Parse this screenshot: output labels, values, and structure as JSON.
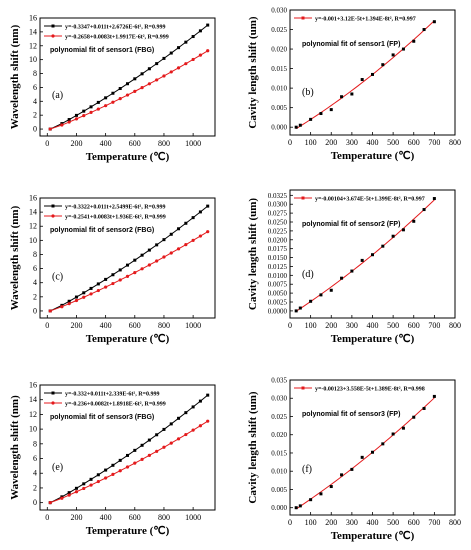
{
  "figure": {
    "background": "#ffffff",
    "colors": {
      "black_series": "#000000",
      "red_series": "#e41a1c",
      "axis": "#000000"
    }
  },
  "chart_data": [
    {
      "id": "a",
      "type": "line",
      "panel_label": "(a)",
      "title": "polynomial fit of sensor1 (FBG)",
      "xlabel": "Temperature (℃)",
      "ylabel": "Wavelength shift (nm)",
      "xlim": [
        -50,
        1150
      ],
      "ylim": [
        -1,
        16
      ],
      "xticks": [
        0,
        200,
        400,
        600,
        800,
        1000
      ],
      "yticks": [
        0,
        2,
        4,
        6,
        8,
        10,
        12,
        14,
        16
      ],
      "legend_location": "top-left",
      "series": [
        {
          "name": "y=-0.3347+0.011t+2.6726E-6t², R=0.999",
          "color": "#000000",
          "marker": "square",
          "x": [
            20,
            100,
            150,
            200,
            250,
            300,
            350,
            400,
            450,
            500,
            550,
            600,
            650,
            700,
            750,
            800,
            850,
            900,
            950,
            1000,
            1050,
            1100
          ],
          "y": [
            0.0,
            0.79,
            1.37,
            1.97,
            2.58,
            3.2,
            3.84,
            4.5,
            5.16,
            5.84,
            6.53,
            7.24,
            7.96,
            8.69,
            9.43,
            10.18,
            10.95,
            11.73,
            12.52,
            13.33,
            14.15,
            14.98
          ]
        },
        {
          "name": "y=-0.2658+0.0083t+1.9917E-6t², R=0.999",
          "color": "#e41a1c",
          "marker": "circle",
          "x": [
            20,
            100,
            150,
            200,
            250,
            300,
            350,
            400,
            450,
            500,
            550,
            600,
            650,
            700,
            750,
            800,
            850,
            900,
            950,
            1000,
            1050,
            1100
          ],
          "y": [
            0.0,
            0.58,
            1.01,
            1.47,
            1.93,
            2.4,
            2.88,
            3.37,
            3.87,
            4.38,
            4.9,
            5.43,
            5.97,
            6.52,
            7.08,
            7.65,
            8.23,
            8.82,
            9.42,
            10.03,
            10.65,
            11.28
          ]
        }
      ]
    },
    {
      "id": "b",
      "type": "scatter",
      "panel_label": "(b)",
      "title": "polynomial fit of sensor1 (FP)",
      "xlabel": "Temperature (℃)",
      "ylabel": "Cavity length shift (um)",
      "xlim": [
        0,
        800
      ],
      "ylim": [
        -0.002,
        0.03
      ],
      "xticks": [
        0,
        100,
        200,
        300,
        400,
        500,
        600,
        700,
        800
      ],
      "yticks": [
        0.0,
        0.005,
        0.01,
        0.015,
        0.02,
        0.025,
        0.03
      ],
      "ytick_labels": [
        "0.000",
        "0.005",
        "0.010",
        "0.015",
        "0.020",
        "0.025",
        "0.030"
      ],
      "legend_location": "top-left",
      "series": [
        {
          "name": "y=-0.001+3.12E-5t+1.394E-8t², R=0.997",
          "color": "#000000",
          "marker": "square",
          "fit_color": "#e41a1c",
          "x": [
            30,
            50,
            100,
            150,
            200,
            250,
            300,
            350,
            400,
            450,
            500,
            550,
            600,
            650,
            700
          ],
          "y": [
            0.0,
            0.0005,
            0.002,
            0.0035,
            0.0045,
            0.0078,
            0.0085,
            0.0122,
            0.0135,
            0.016,
            0.0185,
            0.02,
            0.022,
            0.025,
            0.027
          ]
        }
      ]
    },
    {
      "id": "c",
      "type": "line",
      "panel_label": "(c)",
      "title": "polynomial fit of sensor2 (FBG)",
      "xlabel": "Temperature (℃)",
      "ylabel": "Wavelength shift (nm)",
      "xlim": [
        -50,
        1150
      ],
      "ylim": [
        -1,
        16
      ],
      "xticks": [
        0,
        200,
        400,
        600,
        800,
        1000
      ],
      "yticks": [
        0,
        2,
        4,
        6,
        8,
        10,
        12,
        14,
        16
      ],
      "legend_location": "top-left",
      "series": [
        {
          "name": "y=-0.3322+0.011t+2.5499E-6t², R=0.999",
          "color": "#000000",
          "marker": "square",
          "x": [
            20,
            100,
            150,
            200,
            250,
            300,
            350,
            400,
            450,
            500,
            550,
            600,
            650,
            700,
            750,
            800,
            850,
            900,
            950,
            1000,
            1050,
            1100
          ],
          "y": [
            0.0,
            0.79,
            1.37,
            1.97,
            2.57,
            3.19,
            3.83,
            4.47,
            5.13,
            5.81,
            6.49,
            7.19,
            7.9,
            8.62,
            9.36,
            10.1,
            10.86,
            11.64,
            12.42,
            13.22,
            14.03,
            14.85
          ]
        },
        {
          "name": "y=-0.2541+0.0083t+1.936E-6t², R=0.999",
          "color": "#e41a1c",
          "marker": "circle",
          "x": [
            20,
            100,
            150,
            200,
            250,
            300,
            350,
            400,
            450,
            500,
            550,
            600,
            650,
            700,
            750,
            800,
            850,
            900,
            950,
            1000,
            1050,
            1100
          ],
          "y": [
            0.0,
            0.6,
            1.03,
            1.48,
            1.94,
            2.41,
            2.89,
            3.38,
            3.88,
            4.39,
            4.9,
            5.43,
            5.97,
            6.51,
            7.07,
            7.64,
            8.21,
            8.8,
            9.39,
            10.0,
            10.61,
            11.23
          ]
        }
      ]
    },
    {
      "id": "d",
      "type": "scatter",
      "panel_label": "(d)",
      "title": "polynomial fit of sensor2 (FP)",
      "xlabel": "Temperature (℃)",
      "ylabel": "Cavity length shift (um)",
      "xlim": [
        0,
        800
      ],
      "ylim": [
        -0.002,
        0.034
      ],
      "xticks": [
        0,
        100,
        200,
        300,
        400,
        500,
        600,
        700,
        800
      ],
      "yticks": [
        0.0,
        0.0025,
        0.005,
        0.0075,
        0.01,
        0.0125,
        0.015,
        0.0175,
        0.02,
        0.0225,
        0.025,
        0.0275,
        0.03,
        0.0325
      ],
      "ytick_labels": [
        "0.0000",
        "0.0025",
        "0.0050",
        "0.0075",
        "0.0100",
        "0.0125",
        "0.0150",
        "0.0175",
        "0.0200",
        "0.0225",
        "0.0250",
        "0.0275",
        "0.0300",
        "0.0325"
      ],
      "legend_location": "top-left",
      "series": [
        {
          "name": "y=-0.00104+3.674E-5t+1.399E-8t², R=0.997",
          "color": "#000000",
          "marker": "square",
          "fit_color": "#e41a1c",
          "x": [
            30,
            50,
            100,
            150,
            200,
            250,
            300,
            350,
            400,
            450,
            500,
            550,
            600,
            650,
            700
          ],
          "y": [
            0.0,
            0.0008,
            0.0027,
            0.0045,
            0.0058,
            0.0092,
            0.0112,
            0.0142,
            0.0158,
            0.0182,
            0.021,
            0.0228,
            0.0252,
            0.0285,
            0.0316
          ]
        }
      ]
    },
    {
      "id": "e",
      "type": "line",
      "panel_label": "(e)",
      "title": "polynomial fit of sensor3 (FBG)",
      "xlabel": "Temperature (℃)",
      "ylabel": "Wavelength shift (nm)",
      "xlim": [
        -50,
        1150
      ],
      "ylim": [
        -1,
        16
      ],
      "xticks": [
        0,
        200,
        400,
        600,
        800,
        1000
      ],
      "yticks": [
        0,
        2,
        4,
        6,
        8,
        10,
        12,
        14,
        16
      ],
      "legend_location": "top-left",
      "series": [
        {
          "name": "y=-0.332+0.011t+2.339E-6t², R=0.999",
          "color": "#000000",
          "marker": "square",
          "x": [
            20,
            100,
            150,
            200,
            250,
            300,
            350,
            400,
            450,
            500,
            550,
            600,
            650,
            700,
            750,
            800,
            850,
            900,
            950,
            1000,
            1050,
            1100
          ],
          "y": [
            0.0,
            0.79,
            1.36,
            1.95,
            2.56,
            3.17,
            3.79,
            4.43,
            5.08,
            5.75,
            6.42,
            7.11,
            7.8,
            8.51,
            9.23,
            9.96,
            10.71,
            11.47,
            12.24,
            13.02,
            13.81,
            14.62
          ]
        },
        {
          "name": "y=-0.236+0.0082t+1.8918E-6t², R=0.999",
          "color": "#e41a1c",
          "marker": "circle",
          "x": [
            20,
            100,
            150,
            200,
            250,
            300,
            350,
            400,
            450,
            500,
            550,
            600,
            650,
            700,
            750,
            800,
            850,
            900,
            950,
            1000,
            1050,
            1100
          ],
          "y": [
            0.0,
            0.6,
            1.03,
            1.48,
            1.93,
            2.39,
            2.87,
            3.35,
            3.84,
            4.34,
            4.85,
            5.37,
            5.89,
            6.43,
            6.98,
            7.53,
            8.1,
            8.68,
            9.26,
            9.86,
            10.46,
            11.08
          ]
        }
      ]
    },
    {
      "id": "f",
      "type": "scatter",
      "panel_label": "(f)",
      "title": "polynomial fit of sensor3 (FP)",
      "xlabel": "Temperature (℃)",
      "ylabel": "Cavity length shift (um)",
      "xlim": [
        0,
        800
      ],
      "ylim": [
        -0.002,
        0.035
      ],
      "xticks": [
        0,
        100,
        200,
        300,
        400,
        500,
        600,
        700,
        800
      ],
      "yticks": [
        0.0,
        0.005,
        0.01,
        0.015,
        0.02,
        0.025,
        0.03,
        0.035
      ],
      "ytick_labels": [
        "0.000",
        "0.005",
        "0.010",
        "0.015",
        "0.020",
        "0.025",
        "0.030",
        "0.035"
      ],
      "legend_location": "top-left",
      "series": [
        {
          "name": "y=-0.00123+3.558E-5t+1.389E-8t², R=0.998",
          "color": "#000000",
          "marker": "square",
          "fit_color": "#e41a1c",
          "x": [
            30,
            50,
            100,
            150,
            200,
            250,
            300,
            350,
            400,
            450,
            500,
            550,
            600,
            650,
            700
          ],
          "y": [
            0.0,
            0.0005,
            0.0022,
            0.0038,
            0.0058,
            0.009,
            0.0105,
            0.0138,
            0.0152,
            0.0175,
            0.0202,
            0.0218,
            0.0248,
            0.0272,
            0.0305
          ]
        }
      ]
    }
  ]
}
